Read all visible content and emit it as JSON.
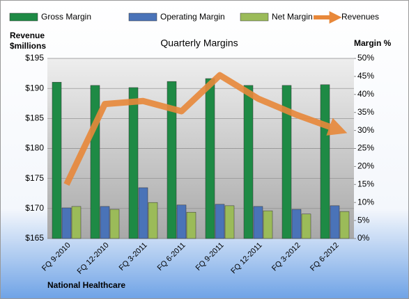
{
  "chart_data": {
    "type": "bar-line",
    "title": "Quarterly Margins",
    "y_label": "Revenue $millions",
    "y2_label": "Margin %",
    "footer": "National Healthcare",
    "categories": [
      "FQ 9-2010",
      "FQ 12-2010",
      "FQ 3-2011",
      "FQ 6-2011",
      "FQ 9-2011",
      "FQ 12-2011",
      "FQ 3-2012",
      "FQ 6-2012"
    ],
    "series": [
      {
        "name": "Gross Margin",
        "type": "bar",
        "axis": "y2",
        "color": "#1e8a45",
        "values": [
          43.4,
          42.5,
          41.9,
          43.6,
          44.4,
          42.5,
          42.5,
          42.7
        ]
      },
      {
        "name": "Operating Margin",
        "type": "bar",
        "axis": "y2",
        "color": "#4a73b8",
        "values": [
          8.5,
          8.9,
          14.1,
          9.3,
          9.5,
          8.9,
          8.1,
          9.1
        ]
      },
      {
        "name": "Net Margin",
        "type": "bar",
        "axis": "y2",
        "color": "#9bbb59",
        "values": [
          8.9,
          8.1,
          10.0,
          7.3,
          9.1,
          7.7,
          6.8,
          7.5
        ]
      },
      {
        "name": "Revenues",
        "type": "line",
        "color": "#e8883a",
        "values": [
          174.0,
          187.4,
          187.9,
          186.2,
          192.2,
          188.3,
          185.6,
          183.3
        ]
      }
    ],
    "ylim": [
      165,
      195
    ],
    "yticks": [
      {
        "value": 165,
        "label": "$165"
      },
      {
        "value": 170,
        "label": "$170"
      },
      {
        "value": 175,
        "label": "$175"
      },
      {
        "value": 180,
        "label": "$180"
      },
      {
        "value": 185,
        "label": "$185"
      },
      {
        "value": 190,
        "label": "$190"
      },
      {
        "value": 195,
        "label": "$195"
      }
    ],
    "y2lim": [
      0,
      50
    ],
    "y2ticks": [
      {
        "value": 0,
        "label": "0%"
      },
      {
        "value": 5,
        "label": "5%"
      },
      {
        "value": 10,
        "label": "10%"
      },
      {
        "value": 15,
        "label": "15%"
      },
      {
        "value": 20,
        "label": "20%"
      },
      {
        "value": 25,
        "label": "25%"
      },
      {
        "value": 30,
        "label": "30%"
      },
      {
        "value": 35,
        "label": "35%"
      },
      {
        "value": 40,
        "label": "40%"
      },
      {
        "value": 45,
        "label": "45%"
      },
      {
        "value": 50,
        "label": "50%"
      }
    ],
    "grid": true
  }
}
